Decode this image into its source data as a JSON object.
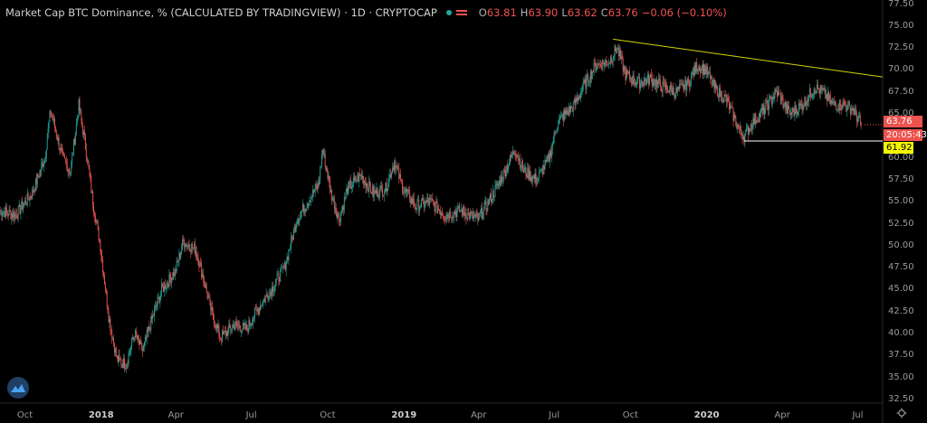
{
  "header": {
    "title": "Market Cap BTC Dominance, % (CALCULATED BY TRADINGVIEW) · 1D · CRYPTOCAP",
    "open_label": "O",
    "open": "63.81",
    "high_label": "H",
    "high": "63.90",
    "low_label": "L",
    "low": "63.62",
    "close_label": "C",
    "close": "63.76",
    "change": "−0.06 (−0.10%)"
  },
  "price_tags": {
    "last_price": "63.76",
    "countdown": "20:05:43",
    "line_level": "61.92"
  },
  "colors": {
    "up": "#26a69a",
    "down": "#ef5350",
    "trendline": "#d4d400",
    "support": "#ffffff",
    "axis_line": "#2a2a2a"
  },
  "icons": {
    "logo": "tradingview-logo-icon",
    "settings": "gear-icon"
  },
  "chart_data": {
    "type": "candlestick",
    "series_name": "BTC Dominance",
    "y_axis_ticks": [
      "77.50",
      "75.00",
      "72.50",
      "70.00",
      "67.50",
      "65.00",
      "62.50",
      "60.00",
      "57.50",
      "55.00",
      "52.50",
      "50.00",
      "47.50",
      "45.00",
      "42.50",
      "40.00",
      "37.50",
      "35.00",
      "32.50"
    ],
    "x_axis_ticks": [
      {
        "label": "Oct",
        "bold": false
      },
      {
        "label": "2018",
        "bold": true
      },
      {
        "label": "Apr",
        "bold": false
      },
      {
        "label": "Jul",
        "bold": false
      },
      {
        "label": "Oct",
        "bold": false
      },
      {
        "label": "2019",
        "bold": true
      },
      {
        "label": "Apr",
        "bold": false
      },
      {
        "label": "Jul",
        "bold": false
      },
      {
        "label": "Oct",
        "bold": false
      },
      {
        "label": "2020",
        "bold": true
      },
      {
        "label": "Apr",
        "bold": false
      },
      {
        "label": "Jul",
        "bold": false
      }
    ],
    "ylim": [
      31.5,
      78.5
    ],
    "close_path": [
      [
        "2017-09-01",
        54.0
      ],
      [
        "2017-09-20",
        53.5
      ],
      [
        "2017-10-10",
        56.0
      ],
      [
        "2017-10-25",
        60.0
      ],
      [
        "2017-11-01",
        65.5
      ],
      [
        "2017-11-15",
        60.0
      ],
      [
        "2017-11-25",
        58.5
      ],
      [
        "2017-12-05",
        66.0
      ],
      [
        "2017-12-12",
        62.0
      ],
      [
        "2017-12-22",
        55.0
      ],
      [
        "2017-12-31",
        50.0
      ],
      [
        "2018-01-10",
        42.0
      ],
      [
        "2018-01-20",
        37.0
      ],
      [
        "2018-01-31",
        36.5
      ],
      [
        "2018-02-10",
        40.0
      ],
      [
        "2018-02-20",
        38.0
      ],
      [
        "2018-03-01",
        41.0
      ],
      [
        "2018-03-15",
        45.0
      ],
      [
        "2018-03-31",
        47.0
      ],
      [
        "2018-04-10",
        50.5
      ],
      [
        "2018-04-25",
        49.5
      ],
      [
        "2018-05-05",
        46.0
      ],
      [
        "2018-05-15",
        42.0
      ],
      [
        "2018-05-25",
        39.5
      ],
      [
        "2018-06-10",
        41.0
      ],
      [
        "2018-06-25",
        40.5
      ],
      [
        "2018-07-10",
        43.0
      ],
      [
        "2018-07-25",
        45.0
      ],
      [
        "2018-08-10",
        47.5
      ],
      [
        "2018-08-25",
        53.0
      ],
      [
        "2018-09-10",
        55.5
      ],
      [
        "2018-09-20",
        57.0
      ],
      [
        "2018-09-25",
        61.0
      ],
      [
        "2018-10-05",
        56.0
      ],
      [
        "2018-10-15",
        53.0
      ],
      [
        "2018-10-25",
        56.5
      ],
      [
        "2018-11-10",
        58.0
      ],
      [
        "2018-11-25",
        56.0
      ],
      [
        "2018-12-10",
        56.5
      ],
      [
        "2018-12-20",
        59.5
      ],
      [
        "2018-12-31",
        56.5
      ],
      [
        "2019-01-15",
        54.5
      ],
      [
        "2019-02-01",
        55.0
      ],
      [
        "2019-02-20",
        53.5
      ],
      [
        "2019-03-10",
        54.0
      ],
      [
        "2019-03-31",
        53.0
      ],
      [
        "2019-04-10",
        54.5
      ],
      [
        "2019-04-25",
        57.0
      ],
      [
        "2019-05-05",
        59.0
      ],
      [
        "2019-05-15",
        61.0
      ],
      [
        "2019-05-25",
        58.5
      ],
      [
        "2019-06-10",
        57.5
      ],
      [
        "2019-06-25",
        60.0
      ],
      [
        "2019-07-05",
        64.0
      ],
      [
        "2019-07-25",
        66.0
      ],
      [
        "2019-08-05",
        68.0
      ],
      [
        "2019-08-20",
        70.5
      ],
      [
        "2019-09-05",
        71.0
      ],
      [
        "2019-09-15",
        72.5
      ],
      [
        "2019-09-25",
        69.5
      ],
      [
        "2019-10-10",
        68.5
      ],
      [
        "2019-10-25",
        69.0
      ],
      [
        "2019-11-10",
        68.0
      ],
      [
        "2019-11-25",
        67.5
      ],
      [
        "2019-12-10",
        68.5
      ],
      [
        "2019-12-20",
        70.5
      ],
      [
        "2019-12-31",
        70.0
      ],
      [
        "2020-01-10",
        68.0
      ],
      [
        "2020-01-25",
        66.5
      ],
      [
        "2020-02-10",
        63.0
      ],
      [
        "2020-02-15",
        62.5
      ],
      [
        "2020-02-25",
        64.0
      ],
      [
        "2020-03-10",
        65.5
      ],
      [
        "2020-03-25",
        67.5
      ],
      [
        "2020-04-10",
        65.0
      ],
      [
        "2020-04-25",
        66.0
      ],
      [
        "2020-05-10",
        68.0
      ],
      [
        "2020-05-20",
        67.5
      ],
      [
        "2020-06-01",
        66.0
      ],
      [
        "2020-06-15",
        66.0
      ],
      [
        "2020-06-25",
        65.5
      ],
      [
        "2020-07-01",
        64.5
      ],
      [
        "2020-07-05",
        63.76
      ]
    ],
    "trendline": {
      "from": [
        "2019-09-10",
        73.5
      ],
      "to": [
        "2020-07-31",
        69.2
      ]
    },
    "support_line": {
      "from": [
        "2020-02-15",
        61.92
      ],
      "to": [
        "2020-07-31",
        61.92
      ]
    }
  }
}
